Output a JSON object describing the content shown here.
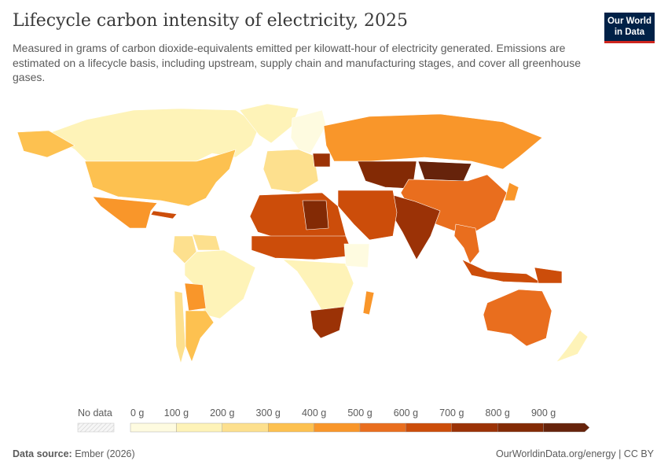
{
  "header": {
    "title": "Lifecycle carbon intensity of electricity, 2025",
    "subtitle": "Measured in grams of carbon dioxide-equivalents emitted per kilowatt-hour of electricity generated. Emissions are estimated on a lifecycle basis, including upstream, supply chain and manufacturing stages, and cover all greenhouse gases.",
    "logo": "Our World in Data",
    "logo_line1": "Our World",
    "logo_line2": "in Data"
  },
  "footer": {
    "source_label": "Data source:",
    "source": "Ember (2026)",
    "credit": "OurWorldinData.org/energy | CC BY"
  },
  "chart_data": {
    "type": "map",
    "title": "Lifecycle carbon intensity of electricity, 2025",
    "unit": "g",
    "legend": {
      "no_data_label": "No data",
      "no_data_color": "#eeeeee",
      "ticks": [
        "0 g",
        "100 g",
        "200 g",
        "300 g",
        "400 g",
        "500 g",
        "600 g",
        "700 g",
        "800 g",
        "900 g"
      ],
      "bins": [
        0,
        100,
        200,
        300,
        400,
        500,
        600,
        700,
        800,
        900
      ],
      "colors": [
        "#fefbe0",
        "#fef3b8",
        "#fde08e",
        "#fdc150",
        "#f9962a",
        "#e96e1e",
        "#cc4d0a",
        "#9b3206",
        "#832a05",
        "#66230b"
      ],
      "open_ended": true
    },
    "regions": [
      {
        "country": "Canada",
        "value": 150
      },
      {
        "country": "Greenland",
        "value": 150
      },
      {
        "country": "United States",
        "value": 370
      },
      {
        "country": "Mexico",
        "value": 450
      },
      {
        "country": "Cuba",
        "value": 650
      },
      {
        "country": "Brazil",
        "value": 120
      },
      {
        "country": "Argentina",
        "value": 320
      },
      {
        "country": "Bolivia",
        "value": 450
      },
      {
        "country": "Chile",
        "value": 280
      },
      {
        "country": "Colombia",
        "value": 200
      },
      {
        "country": "Venezuela",
        "value": 250
      },
      {
        "country": "Norway/Sweden",
        "value": 50
      },
      {
        "country": "Western Europe",
        "value": 250
      },
      {
        "country": "Poland",
        "value": 700
      },
      {
        "country": "Russia",
        "value": 450
      },
      {
        "country": "Kazakhstan/Central Asia",
        "value": 850
      },
      {
        "country": "Mongolia",
        "value": 900
      },
      {
        "country": "China",
        "value": 560
      },
      {
        "country": "India",
        "value": 700
      },
      {
        "country": "Middle East",
        "value": 620
      },
      {
        "country": "North Africa",
        "value": 620
      },
      {
        "country": "Libya",
        "value": 850
      },
      {
        "country": "Sahel",
        "value": 600
      },
      {
        "country": "Central Africa",
        "value": 120
      },
      {
        "country": "Ethiopia",
        "value": 50
      },
      {
        "country": "South Africa",
        "value": 720
      },
      {
        "country": "Madagascar",
        "value": 450
      },
      {
        "country": "Southeast Asia",
        "value": 520
      },
      {
        "country": "Indonesia",
        "value": 620
      },
      {
        "country": "Australia",
        "value": 520
      },
      {
        "country": "New Zealand",
        "value": 150
      },
      {
        "country": "Japan",
        "value": 480
      },
      {
        "country": "Papua New Guinea",
        "value": 600
      }
    ]
  }
}
